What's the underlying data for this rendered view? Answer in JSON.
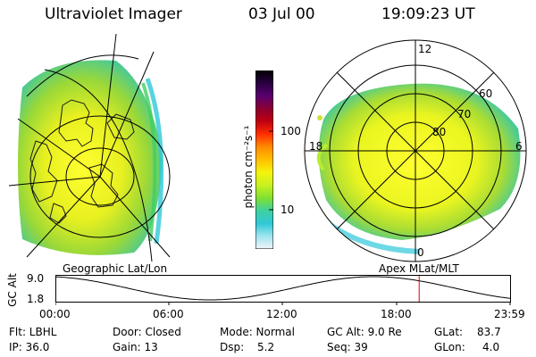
{
  "header": {
    "instrument": "Ultraviolet Imager",
    "date": "03 Jul 00",
    "time": "19:09:23 UT"
  },
  "left_panel": {
    "label": "Geographic Lat/Lon"
  },
  "right_panel": {
    "label": "Apex MLat/MLT",
    "lat_labels": [
      "60",
      "70",
      "80"
    ],
    "mlt_labels": [
      "12",
      "18",
      "6",
      "0"
    ]
  },
  "colorbar": {
    "unit_label": "photon cm⁻²s⁻¹",
    "tick_labels": [
      "100",
      "10"
    ],
    "colors": [
      "#000000",
      "#2a0040",
      "#5a0070",
      "#8a0030",
      "#c00010",
      "#ff3000",
      "#ff8c00",
      "#ffc000",
      "#f4f40c",
      "#c8f020",
      "#80e030",
      "#40d0a0",
      "#30c8d8",
      "#a0e4f0",
      "#f0f4f8"
    ]
  },
  "altitude_plot": {
    "ylabel": "GC Alt",
    "y_max_label": "9.0",
    "y_min_label": "1.8",
    "y_range": [
      1.8,
      9.0
    ],
    "x_tick_labels": [
      "00:00",
      "06:00",
      "12:00",
      "18:00",
      "23:59"
    ],
    "current_time_fraction": 0.8,
    "marker_color": "#dd0000"
  },
  "status": {
    "flt": "Flt: LBHL",
    "ip": "IP: 36.0",
    "door": "Door: Closed",
    "gain": "Gain: 13",
    "mode": "Mode: Normal",
    "dsp_label": "Dsp:",
    "dsp_value": "5.2",
    "gc_alt": "GC Alt: 9.0 Re",
    "seq": "Seq: 39",
    "glat_label": "GLat:",
    "glat_value": "83.7",
    "glon_label": "GLon:",
    "glon_value": "4.0"
  }
}
